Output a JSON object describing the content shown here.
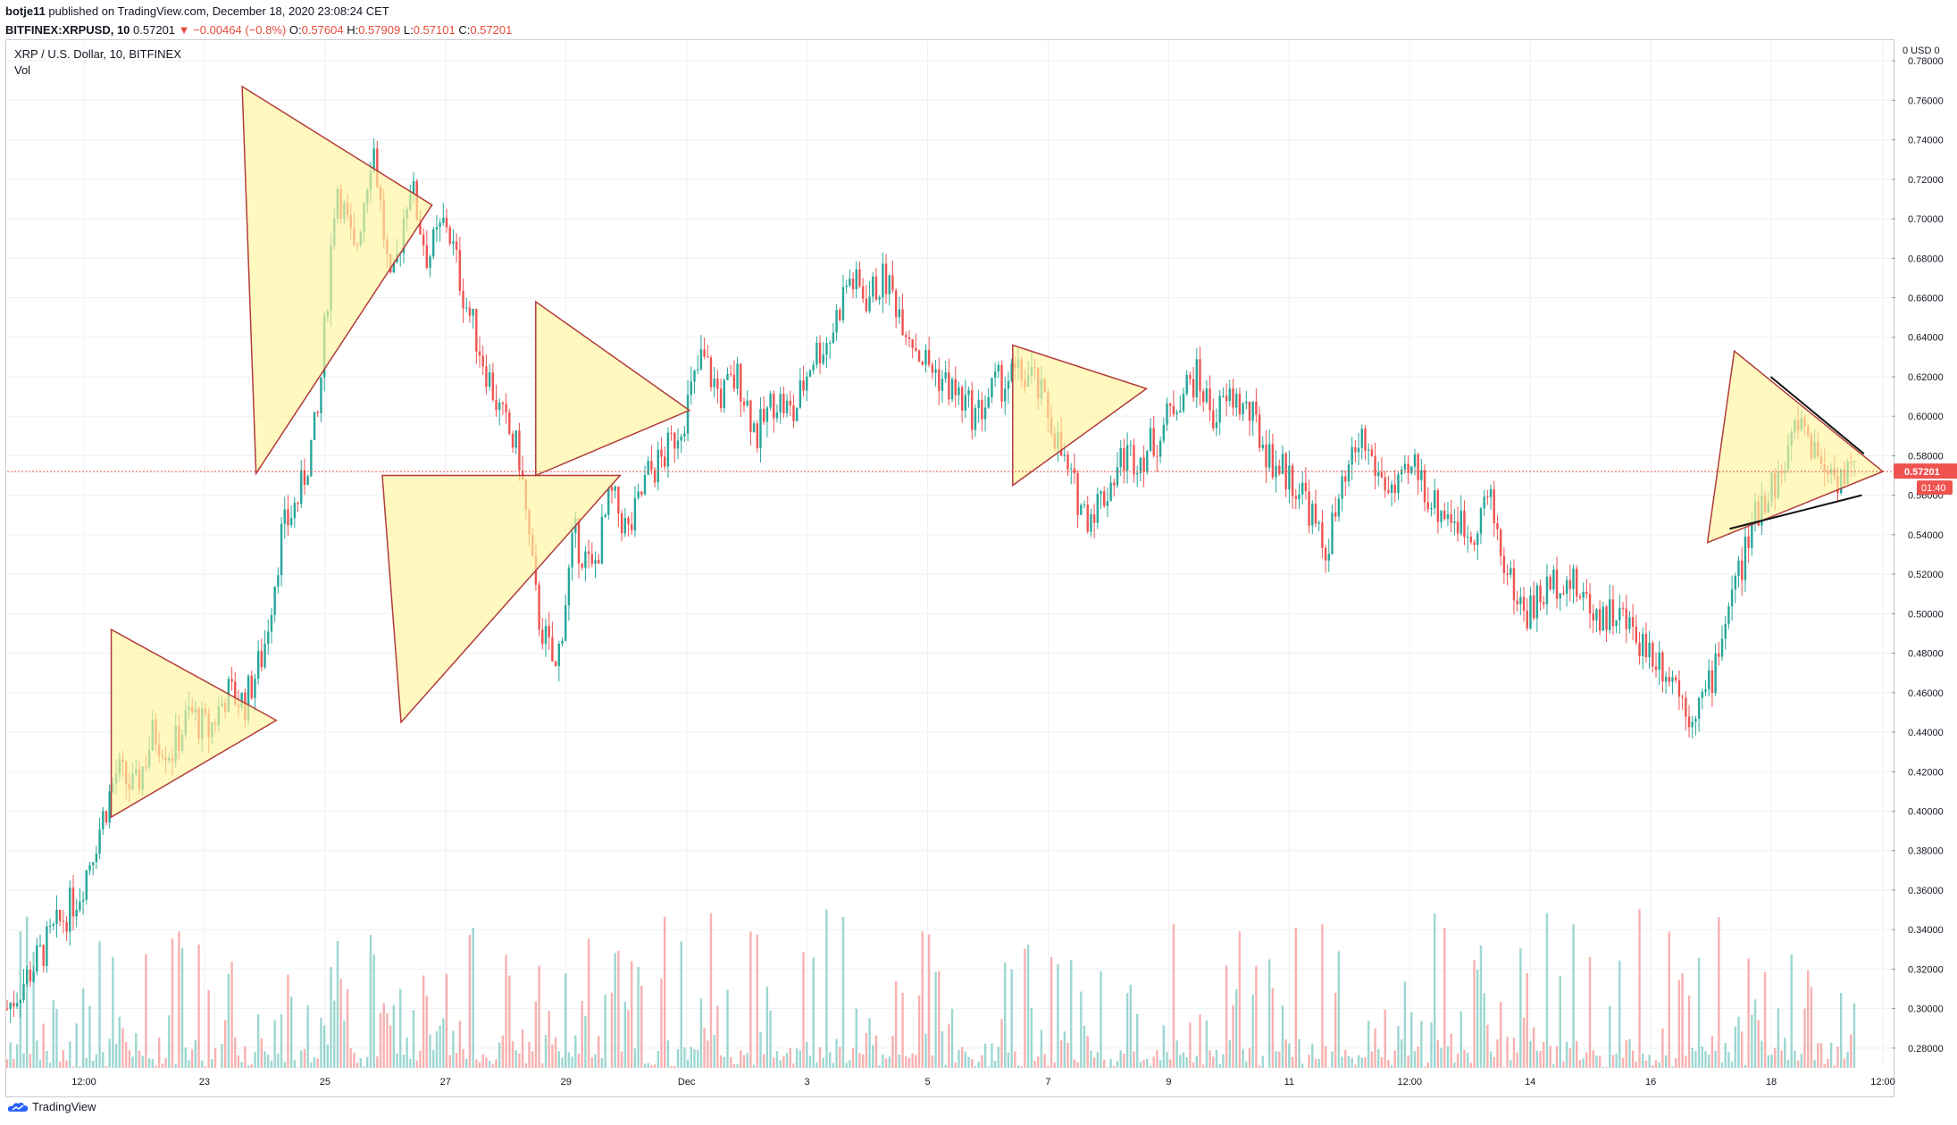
{
  "header": {
    "user": "botje11",
    "published_text": "published on TradingView.com, December 18, 2020 23:08:24 CET",
    "symbol": "BITFINEX:XRPUSD, 10",
    "last": "0.57201",
    "change": "▼ −0.00464 (−0.8%)",
    "o_label": "O:",
    "o_value": "0.57604",
    "h_label": "H:",
    "h_value": "0.57909",
    "l_label": "L:",
    "l_value": "0.57101",
    "c_label": "C:",
    "c_value": "0.57201"
  },
  "legend": {
    "title": "XRP / U.S. Dollar, 10, BITFINEX",
    "vol": "Vol"
  },
  "axis": {
    "unit": "0 USD 0",
    "price_badge": "0.57201",
    "time_badge": "01:40"
  },
  "footer": {
    "brand": "TradingView"
  },
  "colors": {
    "up": "#26a69a",
    "down": "#ef5350",
    "triangle_fill": "#fff59d",
    "triangle_stroke": "#b23b3b",
    "badge": "#ef5350",
    "grid": "#eef0f3"
  },
  "chart_data": {
    "type": "candlestick",
    "ylim": [
      0.27,
      0.79
    ],
    "y_ticks": [
      0.28,
      0.3,
      0.32,
      0.34,
      0.36,
      0.38,
      0.4,
      0.42,
      0.44,
      0.46,
      0.48,
      0.5,
      0.52,
      0.54,
      0.56,
      0.58,
      0.6,
      0.62,
      0.64,
      0.66,
      0.68,
      0.7,
      0.72,
      0.74,
      0.76,
      0.78
    ],
    "x_ticks": [
      "12:00",
      "23",
      "25",
      "27",
      "29",
      "Dec",
      "3",
      "5",
      "7",
      "9",
      "11",
      "12:00",
      "14",
      "16",
      "18",
      "12:00"
    ],
    "current_price": 0.57201,
    "price_path": [
      [
        0,
        0.3
      ],
      [
        2,
        0.33
      ],
      [
        4,
        0.36
      ],
      [
        5,
        0.39
      ],
      [
        6,
        0.42
      ],
      [
        7,
        0.41
      ],
      [
        8,
        0.44
      ],
      [
        9,
        0.43
      ],
      [
        10,
        0.45
      ],
      [
        11,
        0.44
      ],
      [
        12,
        0.46
      ],
      [
        13,
        0.455
      ],
      [
        14,
        0.48
      ],
      [
        15,
        0.54
      ],
      [
        16,
        0.56
      ],
      [
        17,
        0.6
      ],
      [
        18,
        0.72
      ],
      [
        19,
        0.68
      ],
      [
        20,
        0.74
      ],
      [
        21,
        0.66
      ],
      [
        22,
        0.72
      ],
      [
        23,
        0.68
      ],
      [
        24,
        0.7
      ],
      [
        25,
        0.66
      ],
      [
        26,
        0.63
      ],
      [
        27,
        0.6
      ],
      [
        28,
        0.58
      ],
      [
        29,
        0.5
      ],
      [
        30,
        0.47
      ],
      [
        31,
        0.54
      ],
      [
        32,
        0.52
      ],
      [
        33,
        0.56
      ],
      [
        34,
        0.54
      ],
      [
        35,
        0.57
      ],
      [
        36,
        0.58
      ],
      [
        37,
        0.6
      ],
      [
        38,
        0.63
      ],
      [
        39,
        0.61
      ],
      [
        40,
        0.62
      ],
      [
        41,
        0.59
      ],
      [
        42,
        0.61
      ],
      [
        43,
        0.6
      ],
      [
        44,
        0.63
      ],
      [
        45,
        0.64
      ],
      [
        46,
        0.67
      ],
      [
        47,
        0.66
      ],
      [
        48,
        0.67
      ],
      [
        49,
        0.65
      ],
      [
        50,
        0.63
      ],
      [
        51,
        0.62
      ],
      [
        52,
        0.61
      ],
      [
        53,
        0.6
      ],
      [
        54,
        0.615
      ],
      [
        55,
        0.62
      ],
      [
        56,
        0.62
      ],
      [
        57,
        0.6
      ],
      [
        58,
        0.57
      ],
      [
        59,
        0.55
      ],
      [
        60,
        0.56
      ],
      [
        61,
        0.58
      ],
      [
        62,
        0.58
      ],
      [
        63,
        0.59
      ],
      [
        64,
        0.61
      ],
      [
        65,
        0.62
      ],
      [
        66,
        0.6
      ],
      [
        67,
        0.61
      ],
      [
        68,
        0.6
      ],
      [
        69,
        0.58
      ],
      [
        70,
        0.57
      ],
      [
        71,
        0.56
      ],
      [
        72,
        0.53
      ],
      [
        73,
        0.56
      ],
      [
        74,
        0.59
      ],
      [
        75,
        0.57
      ],
      [
        76,
        0.56
      ],
      [
        77,
        0.575
      ],
      [
        78,
        0.555
      ],
      [
        79,
        0.55
      ],
      [
        80,
        0.54
      ],
      [
        81,
        0.56
      ],
      [
        82,
        0.52
      ],
      [
        83,
        0.5
      ],
      [
        84,
        0.51
      ],
      [
        85,
        0.52
      ],
      [
        86,
        0.51
      ],
      [
        87,
        0.5
      ],
      [
        88,
        0.5
      ],
      [
        89,
        0.49
      ],
      [
        90,
        0.48
      ],
      [
        91,
        0.47
      ],
      [
        92,
        0.45
      ],
      [
        93,
        0.46
      ],
      [
        94,
        0.5
      ],
      [
        95,
        0.53
      ],
      [
        96,
        0.56
      ],
      [
        97,
        0.57
      ],
      [
        98,
        0.6
      ],
      [
        99,
        0.58
      ],
      [
        100,
        0.57
      ],
      [
        101,
        0.572
      ]
    ],
    "triangles": [
      [
        [
          0.0555,
          0.492
        ],
        [
          0.0555,
          0.397
        ],
        [
          0.1435,
          0.446
        ]
      ],
      [
        [
          0.1253,
          0.767
        ],
        [
          0.1327,
          0.571
        ],
        [
          0.2265,
          0.707
        ]
      ],
      [
        [
          0.2,
          0.57
        ],
        [
          0.21,
          0.445
        ],
        [
          0.3268,
          0.57
        ]
      ],
      [
        [
          0.2818,
          0.658
        ],
        [
          0.2818,
          0.57
        ],
        [
          0.3637,
          0.603
        ]
      ],
      [
        [
          0.5361,
          0.636
        ],
        [
          0.5361,
          0.565
        ],
        [
          0.6074,
          0.614
        ]
      ],
      [
        [
          0.9208,
          0.633
        ],
        [
          0.9065,
          0.536
        ],
        [
          1.0,
          0.572
        ]
      ]
    ]
  }
}
